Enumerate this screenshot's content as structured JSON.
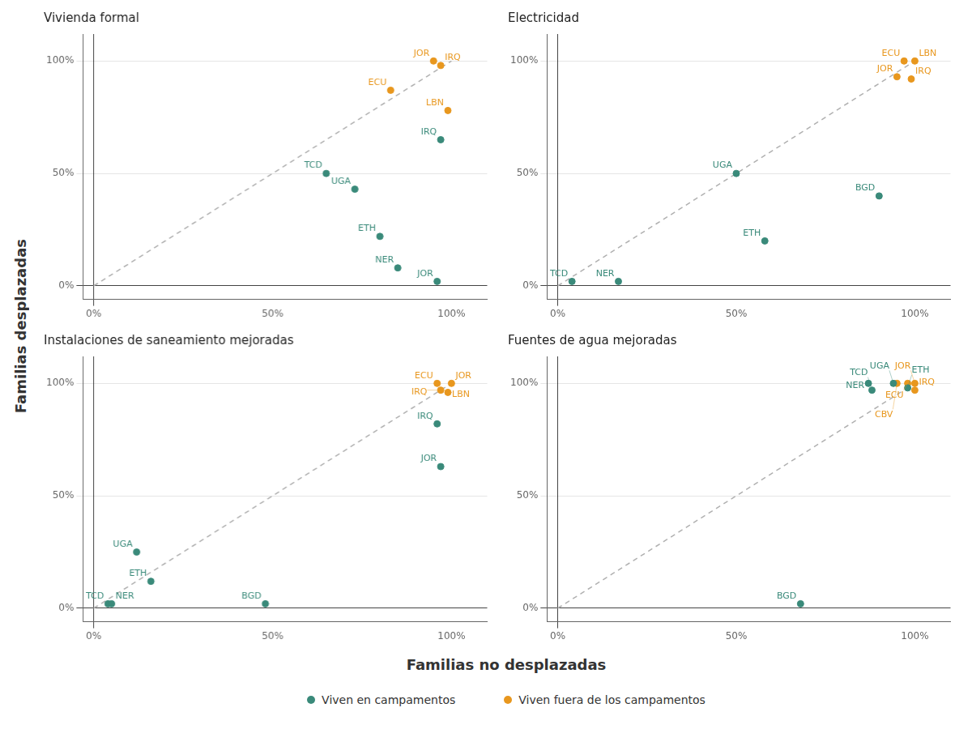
{
  "chart_data": {
    "type": "scatter",
    "xlabel": "Familias no desplazadas",
    "ylabel": "Familias desplazadas",
    "legend": "bottom",
    "subplots": [
      {
        "title": "Vivienda formal",
        "xlim": [
          -0.03,
          1.1
        ],
        "ylim": [
          -0.06,
          1.12
        ],
        "xticks": [
          {
            "value": 0,
            "label": "0%"
          },
          {
            "value": 0.5,
            "label": "50%"
          },
          {
            "value": 1.0,
            "label": "100%"
          }
        ],
        "yticks": [
          {
            "value": 0,
            "label": "0%"
          },
          {
            "value": 0.5,
            "label": "50%"
          },
          {
            "value": 1.0,
            "label": "100%"
          }
        ],
        "grid": "y",
        "series": [
          {
            "type": "line",
            "line_style": "dashed",
            "color": "#b0b0b0",
            "x": [
              0,
              1
            ],
            "values": [
              0,
              1
            ]
          },
          {
            "name": "Viven en campamentos",
            "color": "#3a8a7a",
            "marker": "circle",
            "x": [
              0.65,
              0.73,
              0.8,
              0.85,
              0.96,
              0.97
            ],
            "values": [
              0.5,
              0.43,
              0.22,
              0.08,
              0.02,
              0.65
            ],
            "labels": [
              "TCD",
              "UGA",
              "ETH",
              "NER",
              "JOR",
              "IRQ"
            ]
          },
          {
            "name": "Viven fuera de los campamentos",
            "color": "#e8971e",
            "marker": "circle",
            "x": [
              0.95,
              0.97,
              0.83,
              0.99
            ],
            "values": [
              1.0,
              0.98,
              0.87,
              0.78
            ],
            "labels": [
              "JOR",
              "IRQ",
              "ECU",
              "LBN"
            ]
          }
        ]
      },
      {
        "title": "Electricidad",
        "xlim": [
          -0.03,
          1.1
        ],
        "ylim": [
          -0.06,
          1.12
        ],
        "xticks": [
          {
            "value": 0,
            "label": "0%"
          },
          {
            "value": 0.5,
            "label": "50%"
          },
          {
            "value": 1.0,
            "label": "100%"
          }
        ],
        "yticks": [
          {
            "value": 0,
            "label": "0%"
          },
          {
            "value": 0.5,
            "label": "50%"
          },
          {
            "value": 1.0,
            "label": "100%"
          }
        ],
        "grid": "y",
        "series": [
          {
            "type": "line",
            "line_style": "dashed",
            "color": "#b0b0b0",
            "x": [
              0,
              1
            ],
            "values": [
              0,
              1
            ]
          },
          {
            "name": "Viven en campamentos",
            "color": "#3a8a7a",
            "marker": "circle",
            "x": [
              0.04,
              0.5,
              0.58,
              0.17,
              0.9
            ],
            "values": [
              0.02,
              0.5,
              0.2,
              0.02,
              0.4
            ],
            "labels": [
              "TCD",
              "UGA",
              "ETH",
              "NER",
              "BGD"
            ]
          },
          {
            "name": "Viven fuera de los campamentos",
            "color": "#e8971e",
            "marker": "circle",
            "x": [
              0.97,
              1.0,
              0.95,
              0.99
            ],
            "values": [
              1.0,
              1.0,
              0.93,
              0.92
            ],
            "labels": [
              "ECU",
              "LBN",
              "JOR",
              "IRQ"
            ]
          }
        ]
      },
      {
        "title": "Instalaciones de saneamiento mejoradas",
        "xlim": [
          -0.03,
          1.1
        ],
        "ylim": [
          -0.06,
          1.12
        ],
        "xticks": [
          {
            "value": 0,
            "label": "0%"
          },
          {
            "value": 0.5,
            "label": "50%"
          },
          {
            "value": 1.0,
            "label": "100%"
          }
        ],
        "yticks": [
          {
            "value": 0,
            "label": "0%"
          },
          {
            "value": 0.5,
            "label": "50%"
          },
          {
            "value": 1.0,
            "label": "100%"
          }
        ],
        "grid": "y",
        "series": [
          {
            "type": "line",
            "line_style": "dashed",
            "color": "#b0b0b0",
            "x": [
              0,
              1
            ],
            "values": [
              0,
              1
            ]
          },
          {
            "name": "Viven en campamentos",
            "color": "#3a8a7a",
            "marker": "circle",
            "x": [
              0.04,
              0.12,
              0.16,
              0.05,
              0.48,
              0.96,
              0.97
            ],
            "values": [
              0.02,
              0.25,
              0.12,
              0.02,
              0.02,
              0.82,
              0.63
            ],
            "labels": [
              "TCD",
              "UGA",
              "ETH",
              "NER",
              "BGD",
              "IRQ",
              "JOR"
            ]
          },
          {
            "name": "Viven fuera de los campamentos",
            "color": "#e8971e",
            "marker": "circle",
            "x": [
              0.96,
              1.0,
              0.97,
              0.99
            ],
            "values": [
              1.0,
              1.0,
              0.97,
              0.96
            ],
            "labels": [
              "ECU",
              "JOR",
              "IRQ",
              "LBN"
            ]
          }
        ]
      },
      {
        "title": "Fuentes de agua mejoradas",
        "xlim": [
          -0.03,
          1.1
        ],
        "ylim": [
          -0.06,
          1.12
        ],
        "xticks": [
          {
            "value": 0,
            "label": "0%"
          },
          {
            "value": 0.5,
            "label": "50%"
          },
          {
            "value": 1.0,
            "label": "100%"
          }
        ],
        "yticks": [
          {
            "value": 0,
            "label": "0%"
          },
          {
            "value": 0.5,
            "label": "50%"
          },
          {
            "value": 1.0,
            "label": "100%"
          }
        ],
        "grid": "y",
        "series": [
          {
            "type": "line",
            "line_style": "dashed",
            "color": "#b0b0b0",
            "x": [
              0,
              1
            ],
            "values": [
              0,
              1
            ]
          },
          {
            "name": "Viven en campamentos",
            "color": "#3a8a7a",
            "marker": "circle",
            "x": [
              0.88,
              0.94,
              0.98,
              0.87,
              0.68
            ],
            "values": [
              0.97,
              1.0,
              0.98,
              1.0,
              0.02
            ],
            "labels": [
              "TCD",
              "UGA",
              "ETH",
              "NER",
              "BGD"
            ]
          },
          {
            "name": "Viven fuera de los campamentos",
            "color": "#e8971e",
            "marker": "circle",
            "x": [
              0.98,
              1.0,
              1.0,
              0.95
            ],
            "values": [
              1.0,
              1.0,
              0.97,
              1.0
            ],
            "labels": [
              "ECU",
              "JOR",
              "IRQ",
              "CBV"
            ]
          }
        ]
      }
    ]
  }
}
